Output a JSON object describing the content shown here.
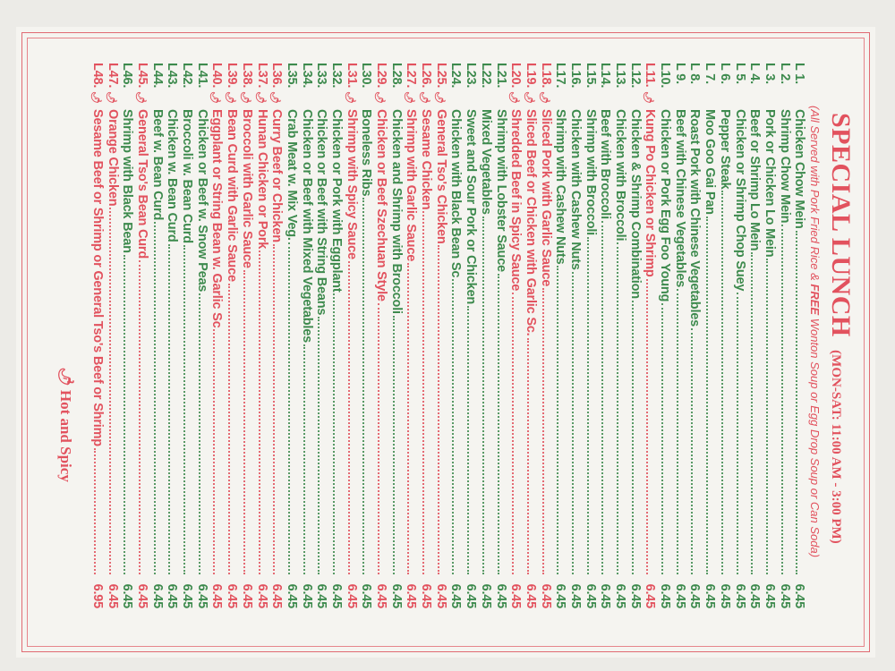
{
  "header": {
    "title": "SPECIAL LUNCH",
    "hours": "(MON-SAT: 11:00 AM - 3:00 PM)",
    "subtitle_a": "(All Served with Pork Fried Rice & ",
    "subtitle_free": "FREE",
    "subtitle_b": " Wonton Soup or Egg Drop Soup or Can Soda)"
  },
  "colors": {
    "regular": "#3d8a4d",
    "hot": "#e2525e"
  },
  "items": [
    {
      "num": "L 1.",
      "name": "Chicken Chow Mein",
      "price": "6.45",
      "hot": false
    },
    {
      "num": "L 2.",
      "name": "Shrimp Chow Mein",
      "price": "6.45",
      "hot": false
    },
    {
      "num": "L 3.",
      "name": "Pork or Chicken Lo Mein",
      "price": "6.45",
      "hot": false
    },
    {
      "num": "L 4.",
      "name": "Beef or Shrimp Lo Mein",
      "price": "6.45",
      "hot": false
    },
    {
      "num": "L 5.",
      "name": "Chicken or Shrimp Chop Suey",
      "price": "6.45",
      "hot": false
    },
    {
      "num": "L 6.",
      "name": "Pepper Steak",
      "price": "6.45",
      "hot": false
    },
    {
      "num": "L 7.",
      "name": "Moo Goo Gai Pan",
      "price": "6.45",
      "hot": false
    },
    {
      "num": "L 8.",
      "name": "Roast Pork with Chinese Vegetables",
      "price": "6.45",
      "hot": false
    },
    {
      "num": "L 9.",
      "name": "Beef with Chinese Vegetables",
      "price": "6.45",
      "hot": false
    },
    {
      "num": "L10.",
      "name": "Chicken or Pork Egg Foo Young",
      "price": "6.45",
      "hot": false
    },
    {
      "num": "L11.",
      "name": "Kung Po Chicken or Shrimp",
      "price": "6.45",
      "hot": true
    },
    {
      "num": "L12.",
      "name": "Chicken & Shrimp Combination",
      "price": "6.45",
      "hot": false
    },
    {
      "num": "L13.",
      "name": "Chicken with Broccoli",
      "price": "6.45",
      "hot": false
    },
    {
      "num": "L14.",
      "name": "Beef with Broccoli",
      "price": "6.45",
      "hot": false
    },
    {
      "num": "L15.",
      "name": "Shrimp with Broccoli",
      "price": "6.45",
      "hot": false
    },
    {
      "num": "L16.",
      "name": "Chicken with Cashew Nuts",
      "price": "6.45",
      "hot": false
    },
    {
      "num": "L17.",
      "name": "Shrimp with Cashew Nuts",
      "price": "6.45",
      "hot": false
    },
    {
      "num": "L18.",
      "name": "Sliced Pork with Garlic Sauce",
      "price": "6.45",
      "hot": true
    },
    {
      "num": "L19.",
      "name": "Sliced Beef or Chicken with Garlic Sc.",
      "price": "6.45",
      "hot": true
    },
    {
      "num": "L20.",
      "name": "Shredded Beef in Spicy Sauce",
      "price": "6.45",
      "hot": true
    },
    {
      "num": "L21.",
      "name": "Shrimp with Lobster Sauce",
      "price": "6.45",
      "hot": false
    },
    {
      "num": "L22.",
      "name": "Mixed Vegetables",
      "price": "6.45",
      "hot": false
    },
    {
      "num": "L23.",
      "name": "Sweet and Sour Pork or Chicken",
      "price": "6.45",
      "hot": false
    },
    {
      "num": "L24.",
      "name": "Chicken with Black Bean Sc",
      "price": "6.45",
      "hot": false
    },
    {
      "num": "L25.",
      "name": "General Tso's Chicken",
      "price": "6.45",
      "hot": true
    },
    {
      "num": "L26.",
      "name": "Sesame Chicken",
      "price": "6.45",
      "hot": true
    },
    {
      "num": "L27.",
      "name": "Shrimp with Garlic Sauce",
      "price": "6.45",
      "hot": true
    },
    {
      "num": "L28.",
      "name": "Chicken and Shrimp with Broccoli",
      "price": "6.45",
      "hot": false
    },
    {
      "num": "L29.",
      "name": "Chicken or Beef Szechuan Style",
      "price": "6.45",
      "hot": true
    },
    {
      "num": "L30.",
      "name": "Boneless Ribs",
      "price": "6.45",
      "hot": false
    },
    {
      "num": "L31.",
      "name": "Shrimp with Spicy Sauce",
      "price": "6.45",
      "hot": true
    },
    {
      "num": "L32.",
      "name": "Chicken or Pork with Eggplant",
      "price": "6.45",
      "hot": false
    },
    {
      "num": "L33.",
      "name": "Chicken or Beef with String Beans",
      "price": "6.45",
      "hot": false
    },
    {
      "num": "L34.",
      "name": "Chicken or Beef with Mixed Vegetables",
      "price": "6.45",
      "hot": false
    },
    {
      "num": "L35.",
      "name": "Crab Meat w. Mix Veg.",
      "price": "6.45",
      "hot": false
    },
    {
      "num": "L36.",
      "name": "Curry Beef or Chicken",
      "price": "6.45",
      "hot": true
    },
    {
      "num": "L37.",
      "name": "Hunan Chicken or Pork",
      "price": "6.45",
      "hot": true
    },
    {
      "num": "L38.",
      "name": "Broccoli with Garlic Sauce",
      "price": "6.45",
      "hot": true
    },
    {
      "num": "L39.",
      "name": "Bean Curd with Garlic Sauce",
      "price": "6.45",
      "hot": true
    },
    {
      "num": "L40.",
      "name": "Eggplant or String Bean w. Garlic Sc",
      "price": "6.45",
      "hot": true
    },
    {
      "num": "L41.",
      "name": "Chicken or Beef w. Snow Peas",
      "price": "6.45",
      "hot": false
    },
    {
      "num": "L42.",
      "name": "Broccoli w. Bean Curd",
      "price": "6.45",
      "hot": false
    },
    {
      "num": "L43.",
      "name": "Chicken w. Bean Curd",
      "price": "6.45",
      "hot": false
    },
    {
      "num": "L44.",
      "name": "Beef w. Bean Curd",
      "price": "6.45",
      "hot": false
    },
    {
      "num": "L45.",
      "name": "General Tso's Bean Curd",
      "price": "6.45",
      "hot": true
    },
    {
      "num": "L46.",
      "name": "Shrimp with Black Bean",
      "price": "6.45",
      "hot": false
    },
    {
      "num": "L47.",
      "name": "Orange Chicken",
      "price": "6.45",
      "hot": true
    },
    {
      "num": "L48.",
      "name": "Sesame Beef or Shrimp or General Tso's Beef or Shrimp",
      "price": "6.95",
      "hot": true
    }
  ],
  "legend": {
    "icon": "hot-pepper-icon",
    "label": "Hot and Spicy"
  }
}
